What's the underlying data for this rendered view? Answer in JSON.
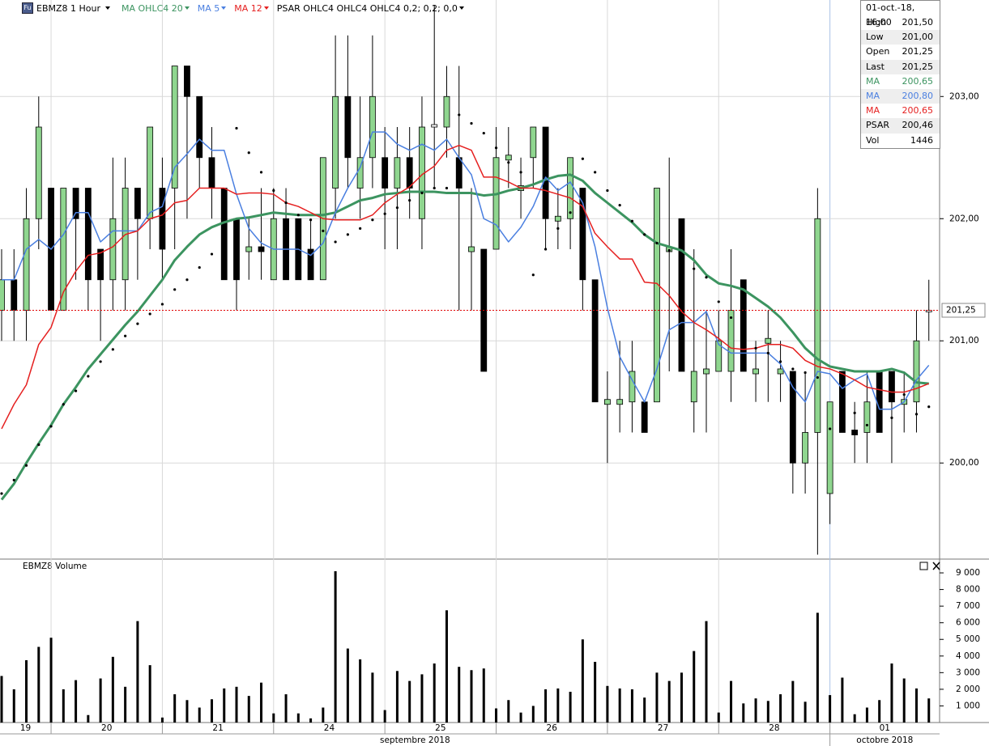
{
  "chart_data": [
    {
      "type": "candlestick",
      "title": "EBMZ8 1 Hour",
      "categories": [
        "19",
        null,
        null,
        null,
        "20",
        null,
        null,
        null,
        null,
        null,
        null,
        null,
        null,
        "21",
        null,
        null,
        null,
        null,
        null,
        null,
        null,
        null,
        "24",
        null,
        null,
        null,
        null,
        null,
        null,
        null,
        null,
        "25",
        null,
        null,
        null,
        null,
        null,
        null,
        null,
        null,
        "26",
        null,
        null,
        null,
        null,
        null,
        null,
        null,
        null,
        "27",
        null,
        null,
        null,
        null,
        null,
        null,
        null,
        null,
        "28",
        null,
        null,
        null,
        null,
        null,
        null,
        null,
        null,
        "01",
        null,
        null,
        null,
        null,
        null,
        null,
        null,
        null
      ],
      "months": [
        "septembre 2018",
        null,
        null,
        null,
        null,
        null,
        null,
        null,
        null,
        null,
        null,
        null,
        null,
        null,
        null,
        null,
        null,
        null,
        null,
        null,
        null,
        null,
        null,
        null,
        null,
        null,
        null,
        null,
        null,
        null,
        null,
        null,
        null,
        null,
        null,
        null,
        null,
        null,
        null,
        null,
        null,
        null,
        null,
        null,
        null,
        null,
        null,
        null,
        null,
        null,
        null,
        null,
        null,
        null,
        null,
        null,
        null,
        null,
        null,
        null,
        null,
        null,
        null,
        null,
        null,
        null,
        null,
        "octobre 2018",
        null,
        null,
        null,
        null,
        null,
        null,
        null,
        null
      ],
      "open": [
        201.25,
        201.5,
        201.25,
        202.0,
        202.25,
        201.25,
        202.25,
        202.25,
        201.75,
        201.5,
        201.5,
        202.25,
        202.0,
        202.25,
        202.25,
        203.25,
        203.0,
        202.5,
        202.25,
        202.0,
        201.73,
        201.77,
        201.5,
        202.0,
        202.0,
        201.75,
        201.5,
        202.25,
        203.0,
        202.25,
        202.5,
        202.5,
        202.25,
        202.5,
        202.0,
        202.75,
        202.75,
        202.5,
        201.73,
        201.75,
        201.75,
        202.48,
        202.23,
        202.5,
        202.75,
        201.98,
        202.0,
        202.25,
        201.5,
        200.48,
        200.48,
        200.5,
        200.5,
        200.5,
        201.73,
        202.0,
        200.5,
        200.73,
        200.75,
        200.75,
        201.5,
        200.73,
        200.98,
        200.73,
        200.75,
        200.0,
        200.25,
        199.75,
        200.75,
        200.27,
        200.25,
        200.75,
        200.75,
        200.48,
        200.5,
        201.25
      ],
      "high": [
        201.75,
        201.75,
        202.25,
        203.0,
        202.25,
        202.25,
        202.25,
        202.25,
        201.75,
        202.5,
        202.5,
        202.25,
        202.75,
        202.5,
        203.25,
        203.25,
        203.0,
        202.75,
        202.25,
        202.0,
        202.0,
        202.25,
        202.25,
        202.25,
        202.0,
        202.0,
        202.5,
        203.5,
        203.5,
        203.0,
        203.5,
        202.75,
        202.75,
        202.75,
        203.0,
        203.75,
        203.25,
        203.25,
        202.25,
        201.75,
        202.75,
        202.75,
        202.5,
        202.75,
        202.75,
        202.25,
        202.5,
        202.25,
        201.5,
        200.75,
        201.0,
        201.0,
        200.5,
        202.25,
        202.5,
        202.0,
        201.75,
        201.25,
        201.25,
        201.75,
        201.5,
        201.0,
        201.25,
        201.0,
        200.75,
        200.75,
        202.25,
        200.5,
        200.75,
        200.5,
        200.75,
        200.75,
        200.75,
        200.75,
        201.25,
        201.5
      ],
      "low": [
        201.0,
        201.0,
        201.0,
        201.75,
        201.25,
        201.25,
        201.5,
        201.25,
        201.0,
        201.25,
        201.25,
        201.5,
        201.75,
        201.5,
        201.75,
        202.0,
        202.25,
        202.0,
        201.5,
        201.25,
        201.5,
        201.5,
        201.5,
        201.5,
        201.5,
        201.5,
        201.5,
        202.0,
        202.25,
        202.0,
        202.25,
        201.75,
        201.75,
        202.0,
        201.75,
        202.25,
        202.5,
        201.25,
        201.25,
        200.75,
        201.75,
        202.25,
        202.0,
        202.25,
        201.75,
        201.75,
        201.75,
        201.25,
        200.5,
        200.0,
        200.25,
        200.25,
        200.25,
        200.5,
        200.75,
        200.75,
        200.25,
        200.25,
        200.75,
        200.5,
        200.75,
        200.5,
        200.5,
        200.5,
        199.75,
        199.75,
        199.25,
        199.5,
        200.25,
        200.0,
        200.0,
        200.25,
        200.0,
        200.25,
        200.25,
        201.0
      ],
      "close": [
        201.5,
        201.25,
        202.0,
        202.75,
        201.25,
        202.25,
        202.0,
        201.5,
        201.5,
        202.0,
        202.25,
        202.0,
        202.75,
        201.75,
        203.25,
        203.0,
        202.5,
        202.25,
        201.5,
        201.5,
        201.77,
        201.73,
        202.0,
        201.5,
        201.5,
        201.5,
        202.5,
        203.0,
        202.5,
        202.5,
        203.0,
        202.25,
        202.5,
        202.25,
        202.75,
        202.77,
        203.0,
        202.25,
        201.77,
        200.75,
        202.5,
        202.52,
        202.27,
        202.75,
        202.0,
        202.02,
        202.5,
        201.5,
        200.5,
        200.52,
        200.52,
        200.75,
        200.25,
        202.25,
        201.77,
        200.75,
        200.75,
        200.77,
        201.0,
        201.25,
        200.75,
        200.77,
        201.02,
        200.77,
        200.0,
        200.25,
        202.0,
        200.5,
        200.25,
        200.23,
        200.5,
        200.25,
        200.5,
        200.52,
        201.0,
        201.25
      ],
      "up_color": "#8fd68f",
      "down_color": "#000000",
      "series": [
        {
          "name": "MA OHLC4 20",
          "color": "#3c9460",
          "width": 3,
          "values": [
            199.7,
            199.83,
            200.0,
            200.16,
            200.31,
            200.48,
            200.62,
            200.77,
            200.89,
            201.01,
            201.13,
            201.24,
            201.37,
            201.5,
            201.66,
            201.77,
            201.87,
            201.93,
            201.97,
            202.0,
            202.01,
            202.03,
            202.05,
            202.04,
            202.03,
            202.03,
            202.03,
            202.05,
            202.1,
            202.15,
            202.17,
            202.2,
            202.21,
            202.22,
            202.22,
            202.22,
            202.21,
            202.21,
            202.21,
            202.19,
            202.2,
            202.23,
            202.25,
            202.28,
            202.32,
            202.35,
            202.36,
            202.31,
            202.21,
            202.13,
            202.05,
            201.97,
            201.87,
            201.8,
            201.77,
            201.74,
            201.66,
            201.54,
            201.47,
            201.45,
            201.42,
            201.35,
            201.28,
            201.19,
            201.07,
            200.94,
            200.85,
            200.79,
            200.77,
            200.75,
            200.75,
            200.75,
            200.77,
            200.74,
            200.66,
            200.65
          ]
        },
        {
          "name": "MA 5",
          "color": "#4a7fe0",
          "width": 1.5,
          "values": [
            201.5,
            201.5,
            201.75,
            201.83,
            201.75,
            201.87,
            202.05,
            202.05,
            201.81,
            201.9,
            201.9,
            201.9,
            202.05,
            202.1,
            202.42,
            202.53,
            202.65,
            202.56,
            202.56,
            202.2,
            201.92,
            201.8,
            201.75,
            201.75,
            201.75,
            201.7,
            201.8,
            202.05,
            202.25,
            202.42,
            202.71,
            202.71,
            202.61,
            202.56,
            202.61,
            202.56,
            202.65,
            202.5,
            202.36,
            202.0,
            201.95,
            201.81,
            201.93,
            202.1,
            202.34,
            202.23,
            202.3,
            202.13,
            201.77,
            201.27,
            200.87,
            200.68,
            200.5,
            200.77,
            201.09,
            201.15,
            201.15,
            201.24,
            200.97,
            200.9,
            200.9,
            200.9,
            200.9,
            200.81,
            200.62,
            200.5,
            200.75,
            200.73,
            200.61,
            200.68,
            200.73,
            200.44,
            200.44,
            200.5,
            200.68,
            200.8
          ]
        },
        {
          "name": "MA 12",
          "color": "#e52020",
          "width": 1.5,
          "values": [
            200.28,
            200.48,
            200.64,
            200.97,
            201.11,
            201.4,
            201.57,
            201.7,
            201.72,
            201.77,
            201.87,
            201.9,
            202.0,
            202.03,
            202.13,
            202.15,
            202.25,
            202.25,
            202.25,
            202.2,
            202.21,
            202.21,
            202.2,
            202.13,
            202.1,
            202.05,
            202.0,
            201.99,
            201.99,
            201.99,
            202.03,
            202.13,
            202.2,
            202.26,
            202.36,
            202.43,
            202.56,
            202.6,
            202.56,
            202.34,
            202.34,
            202.3,
            202.25,
            202.25,
            202.23,
            202.2,
            202.17,
            202.1,
            201.88,
            201.77,
            201.67,
            201.67,
            201.48,
            201.47,
            201.37,
            201.24,
            201.15,
            201.09,
            201.02,
            200.94,
            200.93,
            200.94,
            200.97,
            200.97,
            200.94,
            200.84,
            200.79,
            200.77,
            200.73,
            200.68,
            200.62,
            200.6,
            200.58,
            200.58,
            200.61,
            200.65
          ]
        },
        {
          "name": "PSAR OHLC4 OHLC4 OHLC4 0,2; 0,2; 0,0",
          "color": "#000000",
          "marker": "dot",
          "values": [
            199.75,
            199.86,
            199.98,
            200.15,
            200.3,
            200.48,
            200.59,
            200.71,
            200.83,
            200.93,
            201.04,
            201.14,
            201.22,
            201.3,
            201.42,
            201.5,
            201.6,
            201.71,
            201.81,
            202.74,
            202.54,
            202.38,
            202.23,
            202.13,
            202.03,
            201.99,
            201.9,
            201.81,
            201.87,
            201.92,
            201.99,
            202.04,
            202.09,
            202.15,
            202.21,
            202.25,
            202.25,
            202.85,
            202.78,
            202.7,
            202.58,
            202.46,
            202.38,
            201.54,
            201.75,
            201.92,
            202.05,
            202.49,
            202.38,
            202.23,
            202.11,
            201.98,
            201.87,
            201.8,
            201.74,
            201.67,
            201.59,
            201.52,
            201.32,
            201.19,
            201.03,
            200.94,
            200.9,
            200.83,
            200.77,
            200.74,
            200.7,
            200.28,
            200.51,
            200.41,
            200.31,
            200.31,
            200.37,
            200.56,
            200.4,
            200.46
          ]
        }
      ],
      "ylim": [
        199.22,
        203.79
      ],
      "yticks": [
        {
          "value": 200,
          "label": "200,00"
        },
        {
          "value": 201,
          "label": "201,00"
        },
        {
          "value": 202,
          "label": "202,00"
        },
        {
          "value": 203,
          "label": "203,00"
        }
      ],
      "last_price": {
        "value": 201.25,
        "label": "201,25",
        "color": "#e00000"
      },
      "grid": true
    },
    {
      "type": "bar",
      "title": "EBMZ8 Volume",
      "color": "#000000",
      "values": [
        2800,
        2000,
        3750,
        4550,
        5100,
        2000,
        2550,
        450,
        2650,
        3950,
        2150,
        6100,
        3450,
        300,
        1700,
        1350,
        900,
        1400,
        2050,
        2150,
        1600,
        2400,
        550,
        1700,
        550,
        250,
        900,
        9100,
        4450,
        3800,
        3000,
        750,
        3100,
        2500,
        2900,
        3550,
        6750,
        3350,
        3150,
        3250,
        850,
        1350,
        600,
        1000,
        2000,
        2050,
        1850,
        5000,
        3650,
        2200,
        2050,
        2000,
        1500,
        3000,
        2500,
        3000,
        4300,
        6100,
        600,
        2500,
        1150,
        1450,
        1300,
        1700,
        2500,
        1250,
        6600,
        1650,
        2700,
        500,
        900,
        1350,
        3550,
        2650,
        2050,
        1450
      ],
      "ylim": [
        0,
        9780
      ],
      "yticks": [
        {
          "value": 1000,
          "label": "1 000"
        },
        {
          "value": 2000,
          "label": "2 000"
        },
        {
          "value": 3000,
          "label": "3 000"
        },
        {
          "value": 4000,
          "label": "4 000"
        },
        {
          "value": 5000,
          "label": "5 000"
        },
        {
          "value": 6000,
          "label": "6 000"
        },
        {
          "value": 7000,
          "label": "7 000"
        },
        {
          "value": 8000,
          "label": "8 000"
        },
        {
          "value": 9000,
          "label": "9 000"
        }
      ],
      "grid": false
    }
  ],
  "info_panel": {
    "header": "01-oct.-18, 16:00",
    "rows": [
      {
        "label": "High",
        "value": "201,50"
      },
      {
        "label": "Low",
        "value": "201,00"
      },
      {
        "label": "Open",
        "value": "201,25"
      },
      {
        "label": "Last",
        "value": "201,25"
      },
      {
        "label": "MA",
        "value": "200,65",
        "color": "#3c9460"
      },
      {
        "label": "MA",
        "value": "200,80",
        "color": "#4a7fe0"
      },
      {
        "label": "MA",
        "value": "200,65",
        "color": "#e52020"
      },
      {
        "label": "PSAR",
        "value": "200,46"
      },
      {
        "label": "Vol",
        "value": "1446"
      }
    ]
  }
}
